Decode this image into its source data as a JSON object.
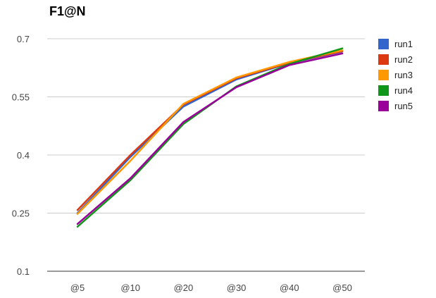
{
  "chart_data": {
    "type": "line",
    "title": "F1@N",
    "xlabel": "",
    "ylabel": "",
    "categories": [
      "@5",
      "@10",
      "@20",
      "@30",
      "@40",
      "@50"
    ],
    "ylim": [
      0.1,
      0.7
    ],
    "yticks": [
      "0.1",
      "0.25",
      "0.4",
      "0.55",
      "0.7"
    ],
    "grid": true,
    "legend_position": "right",
    "series": [
      {
        "name": "run1",
        "color": "#3366cc",
        "values": [
          0.25,
          0.395,
          0.525,
          0.595,
          0.637,
          0.667
        ]
      },
      {
        "name": "run2",
        "color": "#dc3912",
        "values": [
          0.258,
          0.4,
          0.53,
          0.598,
          0.638,
          0.668
        ]
      },
      {
        "name": "run3",
        "color": "#ff9900",
        "values": [
          0.248,
          0.385,
          0.532,
          0.6,
          0.64,
          0.67
        ]
      },
      {
        "name": "run4",
        "color": "#109618",
        "values": [
          0.215,
          0.335,
          0.48,
          0.577,
          0.635,
          0.675
        ]
      },
      {
        "name": "run5",
        "color": "#990099",
        "values": [
          0.222,
          0.34,
          0.485,
          0.575,
          0.632,
          0.662
        ]
      }
    ]
  }
}
